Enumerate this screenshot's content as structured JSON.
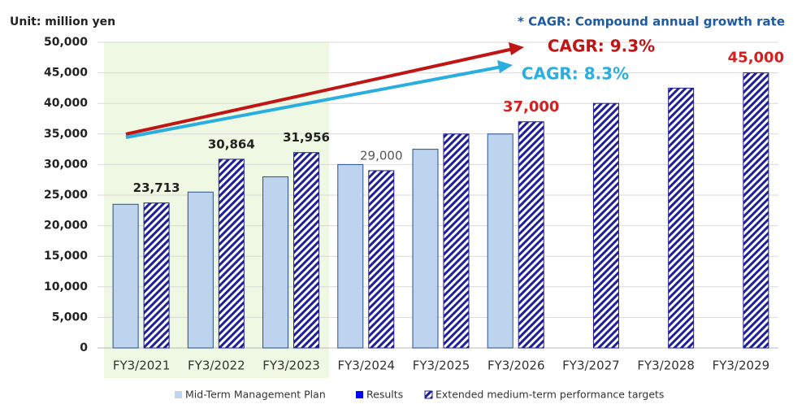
{
  "chart_data": {
    "type": "bar",
    "unit_note": "Unit: million yen",
    "footnote": "* CAGR: Compound annual growth rate",
    "annotations": [
      "CAGR: 9.3%",
      "CAGR: 8.3%"
    ],
    "categories": [
      "FY3/2021",
      "FY3/2022",
      "FY3/2023",
      "FY3/2024",
      "FY3/2025",
      "FY3/2026",
      "FY3/2027",
      "FY3/2028",
      "FY3/2029"
    ],
    "series": [
      {
        "name": "Mid-Term Management Plan",
        "color": "#bdd3ee",
        "values": [
          23500,
          25500,
          28000,
          30000,
          32500,
          35000,
          null,
          null,
          null
        ]
      },
      {
        "name": "Results",
        "color": "#0000ff",
        "values": [
          null,
          null,
          null,
          null,
          null,
          null,
          null,
          null,
          null
        ]
      },
      {
        "name": "Extended medium-term performance targets",
        "color": "#1f1f9a",
        "pattern": "hatch",
        "values": [
          23713,
          30864,
          31956,
          29000,
          35000,
          37000,
          40000,
          42500,
          45000
        ],
        "value_labels": [
          "23,713",
          "30,864",
          "31,956",
          "29,000",
          null,
          "37,000",
          null,
          null,
          "45,000"
        ],
        "value_label_colors": [
          "#222222",
          "#222222",
          "#222222",
          "#555555",
          null,
          "#d42020",
          null,
          null,
          "#d42020"
        ]
      }
    ],
    "ylim": [
      0,
      50000
    ],
    "yticks": [
      0,
      {
        "value": 5000,
        "label": "5,000"
      },
      {
        "value": 10000,
        "label": "10,000"
      },
      {
        "value": 15000,
        "label": "15,000"
      },
      {
        "value": 20000,
        "label": "20,000"
      },
      {
        "value": 25000,
        "label": "25,000"
      },
      {
        "value": 30000,
        "label": "30,000"
      },
      {
        "value": 35000,
        "label": "35,000"
      },
      {
        "value": 40000,
        "label": "40,000"
      },
      {
        "value": 45000,
        "label": "45,000"
      },
      {
        "value": 50000,
        "label": "50,000"
      }
    ],
    "grid": true
  }
}
